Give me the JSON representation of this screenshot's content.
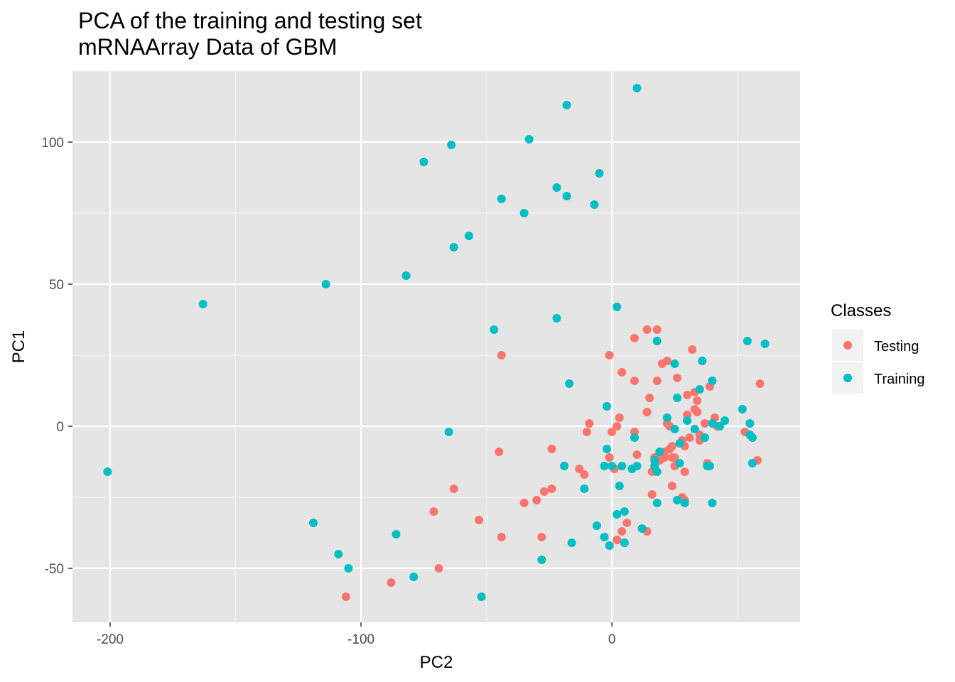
{
  "chart_data": {
    "type": "scatter",
    "title": "PCA of the training and testing set",
    "subtitle": "mRNAArray Data of GBM",
    "xlabel": "PC2",
    "ylabel": "PC1",
    "xlim": [
      -215,
      75
    ],
    "ylim": [
      -69,
      125
    ],
    "x_ticks": [
      -200,
      -100,
      0
    ],
    "y_ticks": [
      -50,
      0,
      50,
      100
    ],
    "grid": true,
    "background": "#e5e5e5",
    "legend": {
      "title": "Classes",
      "position": "right"
    },
    "series": [
      {
        "name": "Testing",
        "color": "#f8766d",
        "points": [
          [
            -106,
            -60
          ],
          [
            -88,
            -55
          ],
          [
            -69,
            -50
          ],
          [
            -71,
            -30
          ],
          [
            -63,
            -22
          ],
          [
            -53,
            -33
          ],
          [
            -44,
            -39
          ],
          [
            -45,
            -9
          ],
          [
            -44,
            25
          ],
          [
            -35,
            -27
          ],
          [
            -28,
            -39
          ],
          [
            -30,
            -26
          ],
          [
            -27,
            -23
          ],
          [
            -24,
            -22
          ],
          [
            -24,
            -8
          ],
          [
            -13,
            -15
          ],
          [
            -11,
            -17
          ],
          [
            -10,
            -2
          ],
          [
            -9,
            1
          ],
          [
            -1,
            -11
          ],
          [
            0,
            -2
          ],
          [
            1,
            -15
          ],
          [
            -1,
            25
          ],
          [
            2,
            0
          ],
          [
            3,
            3
          ],
          [
            4,
            19
          ],
          [
            4,
            -37
          ],
          [
            5,
            -41
          ],
          [
            6,
            -34
          ],
          [
            2,
            -40
          ],
          [
            9,
            31
          ],
          [
            9,
            16
          ],
          [
            9,
            -2
          ],
          [
            10,
            -10
          ],
          [
            14,
            34
          ],
          [
            14,
            5
          ],
          [
            15,
            10
          ],
          [
            16,
            -16
          ],
          [
            16,
            -24
          ],
          [
            17,
            -11
          ],
          [
            18,
            16
          ],
          [
            18,
            34
          ],
          [
            19,
            -12
          ],
          [
            20,
            22
          ],
          [
            21,
            -9
          ],
          [
            21,
            -11
          ],
          [
            22,
            23
          ],
          [
            22,
            1
          ],
          [
            23,
            0
          ],
          [
            23,
            -8
          ],
          [
            24,
            -7
          ],
          [
            24,
            -21
          ],
          [
            24,
            -11
          ],
          [
            25,
            -11
          ],
          [
            25,
            -14
          ],
          [
            26,
            17
          ],
          [
            28,
            -5
          ],
          [
            28,
            -25
          ],
          [
            29,
            -16
          ],
          [
            29,
            -7
          ],
          [
            29,
            -26
          ],
          [
            30,
            4
          ],
          [
            30,
            11
          ],
          [
            31,
            -4
          ],
          [
            32,
            27
          ],
          [
            33,
            6
          ],
          [
            33,
            12
          ],
          [
            34,
            5
          ],
          [
            34,
            9
          ],
          [
            35,
            -3
          ],
          [
            35,
            -5
          ],
          [
            37,
            1
          ],
          [
            38,
            -13
          ],
          [
            39,
            14
          ],
          [
            41,
            3
          ],
          [
            42,
            0
          ],
          [
            14,
            -37
          ],
          [
            53,
            -2
          ],
          [
            58,
            -12
          ],
          [
            59,
            15
          ]
        ]
      },
      {
        "name": "Training",
        "color": "#00bfc4",
        "points": [
          [
            -201,
            -16
          ],
          [
            -163,
            43
          ],
          [
            -114,
            50
          ],
          [
            -119,
            -34
          ],
          [
            -109,
            -45
          ],
          [
            -105,
            -50
          ],
          [
            -86,
            -38
          ],
          [
            -82,
            53
          ],
          [
            -79,
            -53
          ],
          [
            -75,
            93
          ],
          [
            -64,
            99
          ],
          [
            -63,
            63
          ],
          [
            -65,
            -2
          ],
          [
            -57,
            67
          ],
          [
            -52,
            -60
          ],
          [
            -47,
            34
          ],
          [
            -44,
            80
          ],
          [
            -35,
            75
          ],
          [
            -33,
            101
          ],
          [
            -28,
            -47
          ],
          [
            -22,
            84
          ],
          [
            -22,
            38
          ],
          [
            -18,
            81
          ],
          [
            -18,
            113
          ],
          [
            -17,
            15
          ],
          [
            -16,
            -41
          ],
          [
            -19,
            -14
          ],
          [
            -11,
            -22
          ],
          [
            -7,
            78
          ],
          [
            -6,
            -35
          ],
          [
            -5,
            89
          ],
          [
            -3,
            -39
          ],
          [
            -2,
            7
          ],
          [
            -2,
            -8
          ],
          [
            -3,
            -14
          ],
          [
            -1,
            -42
          ],
          [
            0,
            -14
          ],
          [
            2,
            42
          ],
          [
            2,
            -31
          ],
          [
            3,
            -21
          ],
          [
            5,
            -30
          ],
          [
            4,
            -14
          ],
          [
            5,
            -41
          ],
          [
            8,
            -15
          ],
          [
            9,
            -4
          ],
          [
            10,
            -14
          ],
          [
            10,
            119
          ],
          [
            12,
            -36
          ],
          [
            17,
            -12
          ],
          [
            17,
            -14
          ],
          [
            18,
            -16
          ],
          [
            18,
            -27
          ],
          [
            18,
            30
          ],
          [
            19,
            -9
          ],
          [
            22,
            3
          ],
          [
            25,
            22
          ],
          [
            25,
            -1
          ],
          [
            26,
            -26
          ],
          [
            26,
            10
          ],
          [
            27,
            -13
          ],
          [
            27,
            -6
          ],
          [
            29,
            -27
          ],
          [
            30,
            2
          ],
          [
            33,
            -1
          ],
          [
            35,
            13
          ],
          [
            36,
            23
          ],
          [
            37,
            -4
          ],
          [
            38,
            -14
          ],
          [
            39,
            -14
          ],
          [
            40,
            -27
          ],
          [
            40,
            16
          ],
          [
            40,
            1
          ],
          [
            43,
            0
          ],
          [
            45,
            2
          ],
          [
            52,
            6
          ],
          [
            54,
            30
          ],
          [
            55,
            1
          ],
          [
            55,
            -3
          ],
          [
            56,
            -4
          ],
          [
            56,
            -13
          ],
          [
            61,
            29
          ]
        ]
      }
    ]
  }
}
